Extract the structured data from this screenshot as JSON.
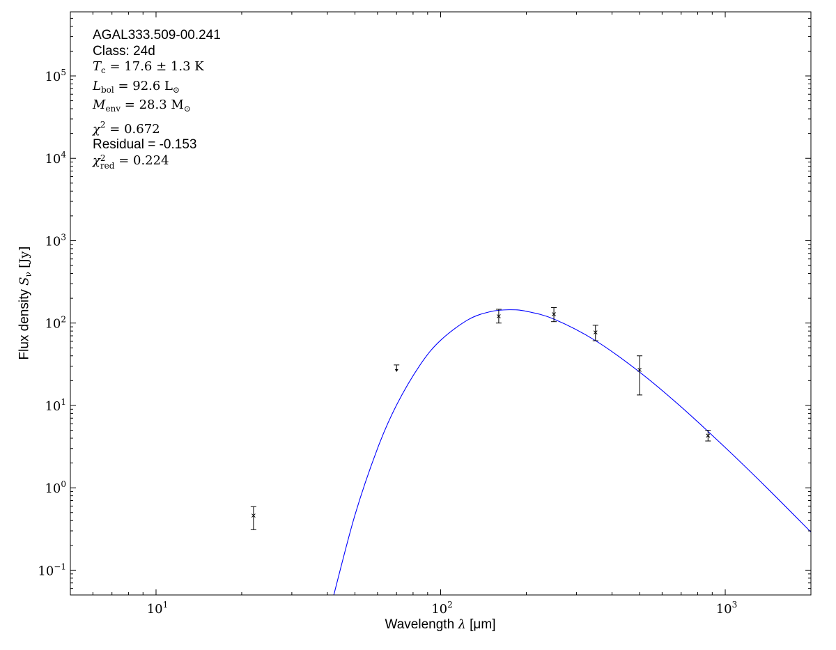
{
  "chart_data": {
    "type": "scatter",
    "xscale": "log",
    "yscale": "log",
    "xlim": [
      5,
      2000
    ],
    "ylim": [
      0.05,
      600000
    ],
    "xlabel": "Wavelength",
    "xlabel_symbol": "λ",
    "xlabel_unit": "[μm]",
    "ylabel": "Flux density",
    "ylabel_symbol": "S",
    "ylabel_sub": "ν",
    "ylabel_unit": "[Jy]",
    "x_ticks": [
      {
        "base": "10",
        "exp": "1",
        "value": 10
      },
      {
        "base": "10",
        "exp": "2",
        "value": 100
      },
      {
        "base": "10",
        "exp": "3",
        "value": 1000
      }
    ],
    "y_ticks": [
      {
        "base": "10",
        "exp": "−1",
        "value": 0.1
      },
      {
        "base": "10",
        "exp": "0",
        "value": 1
      },
      {
        "base": "10",
        "exp": "1",
        "value": 10
      },
      {
        "base": "10",
        "exp": "2",
        "value": 100
      },
      {
        "base": "10",
        "exp": "3",
        "value": 1000
      },
      {
        "base": "10",
        "exp": "4",
        "value": 10000
      },
      {
        "base": "10",
        "exp": "5",
        "value": 100000
      }
    ],
    "grid": false,
    "points": [
      {
        "x": 22,
        "y": 0.46,
        "yerr_low": 0.31,
        "yerr_high": 0.59
      },
      {
        "x": 160,
        "y": 121,
        "yerr_low": 100,
        "yerr_high": 147
      },
      {
        "x": 250,
        "y": 128,
        "yerr_low": 104,
        "yerr_high": 154
      },
      {
        "x": 350,
        "y": 77,
        "yerr_low": 61,
        "yerr_high": 94
      },
      {
        "x": 500,
        "y": 27,
        "yerr_low": 13.4,
        "yerr_high": 40
      },
      {
        "x": 870,
        "y": 4.3,
        "yerr_low": 3.7,
        "yerr_high": 5.0
      }
    ],
    "upper_limits": [
      {
        "x": 70,
        "y": 31
      }
    ],
    "model": {
      "color": "#0000ff",
      "x": [
        42,
        50,
        60,
        70,
        85,
        100,
        125,
        150,
        174,
        200,
        250,
        350,
        500,
        700,
        1000,
        1400,
        2000
      ],
      "y": [
        0.048,
        0.468,
        3.0,
        10.1,
        31.6,
        61.8,
        110,
        137.9,
        145,
        139,
        111.7,
        61.2,
        25.4,
        9.59,
        3.08,
        1.0,
        0.29
      ]
    },
    "annotations": {
      "source": "AGAL333.509-00.241",
      "class": "Class: 24d",
      "tc": {
        "sym": "T",
        "sub": "c",
        "value": "= 17.6 ± 1.3 K"
      },
      "lbol": {
        "sym": "L",
        "sub": "bol",
        "value": "= 92.6 L",
        "unit_sub": "⊙"
      },
      "menv": {
        "sym": "M",
        "sub": "env",
        "value": "= 28.3 M",
        "unit_sub": "⊙"
      },
      "chi2": {
        "sym": "χ",
        "sup": "2",
        "value": "= 0.672"
      },
      "residual": "Residual = -0.153",
      "chi2red": {
        "sym": "χ",
        "sup": "2",
        "sub": "red",
        "value": "= 0.224"
      }
    }
  }
}
